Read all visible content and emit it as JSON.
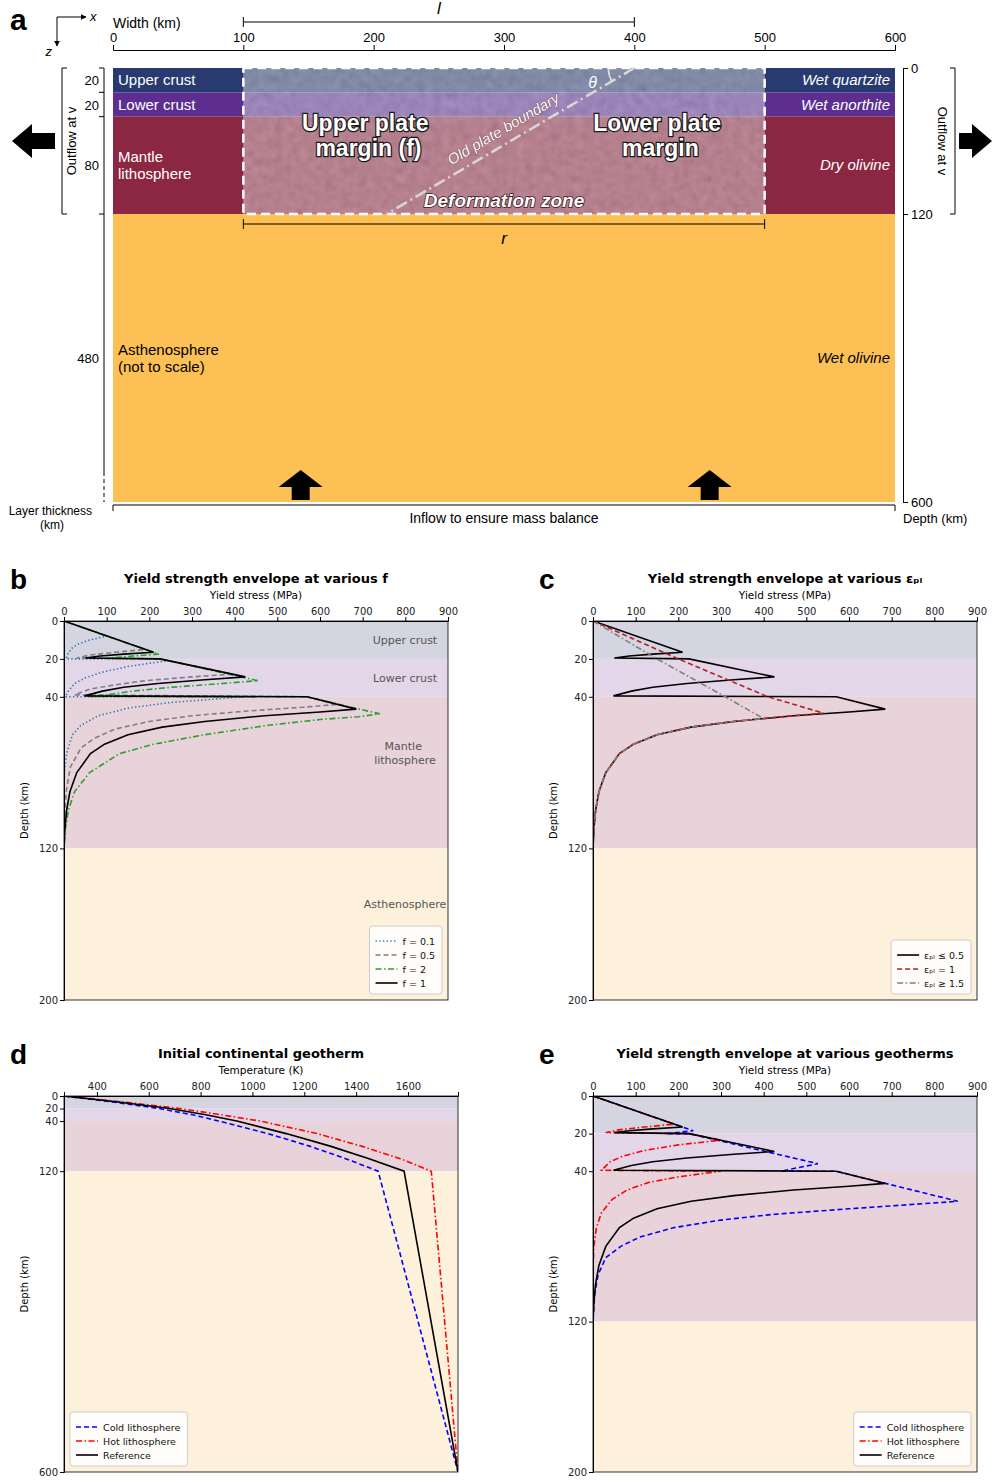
{
  "diagram": {
    "panel": "a",
    "axis_symbols": [
      "x",
      "z"
    ],
    "width_label": "Width (km)",
    "width_lim": [
      0,
      600
    ],
    "width_ticks": [
      0,
      100,
      200,
      300,
      400,
      500,
      600
    ],
    "depth_label": "Depth (km)",
    "depth_ticks": [
      0,
      120,
      600
    ],
    "thickness_label": "Layer thickness (km)",
    "layers": [
      {
        "name": "Upper crust",
        "rheology": "Wet quartzite",
        "thickness": 20,
        "color": "#283a6f"
      },
      {
        "name": "Lower crust",
        "rheology": "Wet anorthite",
        "thickness": 20,
        "color": "#5b2e90"
      },
      {
        "name": "Mantle lithosphere",
        "rheology": "Dry olivine",
        "thickness": 80,
        "color": "#8c2742"
      },
      {
        "name": "Asthenosphere (not to scale)",
        "rheology": "Wet olivine",
        "thickness": 480,
        "color": "#fcc054"
      }
    ],
    "outflow_label": "Outflow at v",
    "inflow_label": "Inflow to ensure mass balance",
    "deformation_zone": {
      "label": "Deformation zone",
      "x_range": [
        100,
        500
      ],
      "depth": 120
    },
    "upper_plate_label": "Upper plate margin (f)",
    "lower_plate_label": "Lower plate margin",
    "old_plate_boundary": {
      "label": "Old plate boundary",
      "x_top": 400,
      "x_bottom": 210,
      "angle_label": "θ"
    },
    "dimensions": [
      {
        "label": "l",
        "x_range": [
          100,
          400
        ]
      },
      {
        "label": "r",
        "x_range": [
          100,
          500
        ]
      }
    ]
  },
  "chart_data": [
    {
      "panel": "b",
      "type": "line",
      "title": "Yield strength envelope at various f",
      "x_label": "Yield stress (MPa)",
      "y_label": "Depth (km)",
      "xlim": [
        0,
        900
      ],
      "xticks": [
        0,
        100,
        200,
        300,
        400,
        500,
        600,
        700,
        800,
        900
      ],
      "ylim": [
        0,
        200
      ],
      "yticks": [
        0,
        20,
        40,
        120,
        200
      ],
      "legend": "lower right",
      "layers": [
        {
          "name": "Upper crust",
          "range": [
            0,
            20
          ],
          "color": "#d4d5e0"
        },
        {
          "name": "Lower crust",
          "range": [
            20,
            40
          ],
          "color": "#e4d6e9"
        },
        {
          "name": "Mantle lithosphere",
          "range": [
            40,
            120
          ],
          "color": "#e8d3da"
        },
        {
          "name": "Asthenosphere",
          "range": [
            120,
            200
          ],
          "color": "#fdf1dc"
        }
      ],
      "series": [
        {
          "name": "f = 0.1",
          "color": "#1f77b4",
          "line_style": "dotted",
          "x": [
            0,
            100,
            60,
            35,
            20,
            10,
            5,
            225,
            240,
            150,
            90,
            50,
            25,
            10,
            3,
            420,
            250,
            150,
            80,
            40,
            20,
            6,
            1,
            0
          ],
          "values": [
            0,
            8,
            10,
            12,
            14,
            17,
            20,
            20,
            21,
            24,
            27,
            30,
            33,
            37,
            40,
            40,
            43,
            46,
            50,
            55,
            60,
            70,
            80,
            90
          ]
        },
        {
          "name": "f = 0.5",
          "color": "#7f7f7f",
          "line_style": "dashed",
          "x": [
            0,
            190,
            120,
            60,
            30,
            225,
            395,
            300,
            190,
            110,
            60,
            25,
            570,
            640,
            560,
            430,
            300,
            200,
            120,
            70,
            40,
            15,
            5,
            0
          ],
          "values": [
            0,
            15,
            16.5,
            18,
            19.5,
            20,
            28,
            29.5,
            31.5,
            34,
            36,
            39,
            40,
            44,
            45.5,
            47.5,
            50,
            53,
            57,
            62,
            67,
            77,
            90,
            110
          ]
        },
        {
          "name": "f = 2",
          "color": "#2ca02c",
          "line_style": "dashdot",
          "x": [
            0,
            222,
            160,
            100,
            225,
            455,
            370,
            250,
            160,
            100,
            60,
            570,
            740,
            690,
            600,
            480,
            330,
            210,
            130,
            60,
            25,
            10,
            3,
            0
          ],
          "values": [
            0,
            17.5,
            18.5,
            19.7,
            20,
            31.5,
            33,
            35,
            37,
            39,
            39.8,
            40,
            49,
            50.5,
            52,
            55,
            60,
            65,
            70,
            80,
            90,
            100,
            110,
            120
          ]
        },
        {
          "name": "f = 1",
          "color": "#000000",
          "line_style": "solid",
          "x": [
            0,
            210,
            140,
            85,
            50,
            225,
            425,
            330,
            220,
            140,
            90,
            48,
            570,
            685,
            600,
            470,
            330,
            230,
            150,
            95,
            62,
            30,
            14,
            6,
            2,
            0,
            0
          ],
          "values": [
            0,
            16.5,
            17.5,
            18.5,
            19.5,
            20,
            29.5,
            31,
            33,
            35,
            37,
            39.5,
            40,
            46.5,
            48,
            50,
            53,
            56,
            60,
            65,
            70,
            80,
            90,
            100,
            110,
            120,
            200
          ]
        }
      ]
    },
    {
      "panel": "c",
      "type": "line",
      "title": "Yield strength envelope at various εₚₗ",
      "x_label": "Yield stress (MPa)",
      "y_label": "Depth (km)",
      "xlim": [
        0,
        900
      ],
      "xticks": [
        0,
        100,
        200,
        300,
        400,
        500,
        600,
        700,
        800,
        900
      ],
      "ylim": [
        0,
        200
      ],
      "yticks": [
        0,
        20,
        40,
        120,
        200
      ],
      "legend": "lower right",
      "layers": [
        {
          "range": [
            0,
            20
          ],
          "color": "#d4d5e0"
        },
        {
          "range": [
            20,
            40
          ],
          "color": "#e4d6e9"
        },
        {
          "range": [
            40,
            120
          ],
          "color": "#e8d3da"
        },
        {
          "range": [
            120,
            200
          ],
          "color": "#fdf1dc"
        }
      ],
      "series": [
        {
          "name": "εₚₗ ≤ 0.5",
          "color": "#000000",
          "line_style": "solid",
          "x": [
            0,
            210,
            140,
            85,
            50,
            225,
            425,
            330,
            220,
            140,
            90,
            48,
            570,
            685,
            600,
            470,
            330,
            230,
            150,
            95,
            62,
            30,
            14,
            6,
            2,
            0,
            0
          ],
          "values": [
            0,
            16.5,
            17.5,
            18.5,
            19.5,
            20,
            29.5,
            31,
            33,
            35,
            37,
            39.5,
            40,
            46.5,
            48,
            50,
            53,
            56,
            60,
            65,
            70,
            80,
            90,
            100,
            110,
            120,
            200
          ]
        },
        {
          "name": "εₚₗ = 1",
          "color": "#b22222",
          "line_style": "dashed",
          "x": [
            0,
            200,
            410,
            540,
            470,
            330,
            230,
            150,
            95,
            62,
            30,
            14,
            6,
            2,
            0,
            0
          ],
          "values": [
            0,
            20,
            40,
            48.6,
            50,
            53,
            56,
            60,
            65,
            70,
            80,
            90,
            100,
            110,
            120,
            200
          ]
        },
        {
          "name": "εₚₗ ≥ 1.5",
          "color": "#7f7f7f",
          "line_style": "dashdot",
          "x": [
            0,
            150,
            310,
            400,
            330,
            230,
            150,
            95,
            62,
            30,
            14,
            6,
            2,
            0,
            0
          ],
          "values": [
            0,
            20,
            40,
            51.5,
            53,
            56,
            60,
            65,
            70,
            80,
            90,
            100,
            110,
            120,
            200
          ]
        }
      ]
    },
    {
      "panel": "d",
      "type": "line",
      "title": "Initial continental geotherm",
      "x_label": "Temperature (K)",
      "y_label": "Depth (km)",
      "xlim": [
        273,
        1793
      ],
      "xticks": [
        400,
        600,
        800,
        1000,
        1200,
        1400,
        1600
      ],
      "ylim": [
        0,
        600
      ],
      "yticks": [
        0,
        20,
        40,
        120,
        600
      ],
      "legend": "lower left",
      "layers": [
        {
          "range": [
            0,
            20
          ],
          "color": "#d4d5e0"
        },
        {
          "range": [
            20,
            40
          ],
          "color": "#e4d6e9"
        },
        {
          "range": [
            40,
            120
          ],
          "color": "#e8d3da"
        },
        {
          "range": [
            120,
            600
          ],
          "color": "#fdf1dc"
        }
      ],
      "series": [
        {
          "name": "Cold lithosphere",
          "color": "#0000ff",
          "line_style": "dashed",
          "x": [
            273,
            470,
            640,
            770,
            870,
            1060,
            1220,
            1360,
            1485,
            1793
          ],
          "values": [
            0,
            10,
            20,
            30,
            40,
            60,
            80,
            100,
            120,
            600
          ]
        },
        {
          "name": "Hot lithosphere",
          "color": "#ff0000",
          "line_style": "dashdot",
          "x": [
            273,
            510,
            720,
            880,
            1030,
            1250,
            1420,
            1570,
            1690,
            1793
          ],
          "values": [
            0,
            10,
            20,
            30,
            40,
            60,
            80,
            100,
            120,
            600
          ]
        },
        {
          "name": "Reference",
          "color": "#000000",
          "line_style": "solid",
          "x": [
            273,
            490,
            680,
            820,
            940,
            1130,
            1300,
            1450,
            1585,
            1793
          ],
          "values": [
            0,
            10,
            20,
            30,
            40,
            60,
            80,
            100,
            120,
            600
          ]
        }
      ]
    },
    {
      "panel": "e",
      "type": "line",
      "title": "Yield strength envelope at various geotherms",
      "x_label": "Yield stress (MPa)",
      "y_label": "Depth (km)",
      "xlim": [
        0,
        900
      ],
      "xticks": [
        0,
        100,
        200,
        300,
        400,
        500,
        600,
        700,
        800,
        900
      ],
      "ylim": [
        0,
        200
      ],
      "yticks": [
        0,
        20,
        40,
        120,
        200
      ],
      "legend": "lower right",
      "layers": [
        {
          "range": [
            0,
            20
          ],
          "color": "#d4d5e0"
        },
        {
          "range": [
            20,
            40
          ],
          "color": "#e4d6e9"
        },
        {
          "range": [
            40,
            120
          ],
          "color": "#e8d3da"
        },
        {
          "range": [
            120,
            200
          ],
          "color": "#fdf1dc"
        }
      ],
      "series": [
        {
          "name": "Cold lithosphere",
          "color": "#0000ff",
          "line_style": "dashed",
          "x": [
            0,
            235,
            170,
            225,
            527,
            440,
            570,
            855,
            600,
            420,
            300,
            190,
            110,
            65,
            30,
            12,
            4,
            0,
            0
          ],
          "values": [
            0,
            18.5,
            20,
            20,
            36,
            40,
            40,
            56,
            60,
            63,
            66,
            70,
            75,
            80,
            86,
            95,
            105,
            120,
            200
          ]
        },
        {
          "name": "Hot lithosphere",
          "color": "#ff0000",
          "line_style": "dashdot",
          "x": [
            0,
            190,
            120,
            60,
            30,
            225,
            300,
            200,
            120,
            70,
            40,
            20,
            300,
            200,
            130,
            80,
            45,
            20,
            8,
            2,
            0
          ],
          "values": [
            0,
            15,
            16.5,
            18,
            19.5,
            20,
            23.5,
            26,
            29,
            32,
            35,
            39.5,
            40,
            43,
            46,
            50,
            55,
            62,
            70,
            80,
            95
          ]
        },
        {
          "name": "Reference",
          "color": "#000000",
          "line_style": "solid",
          "x": [
            0,
            210,
            140,
            85,
            50,
            225,
            425,
            330,
            220,
            140,
            90,
            48,
            570,
            685,
            600,
            470,
            330,
            230,
            150,
            95,
            62,
            30,
            14,
            6,
            2,
            0,
            0
          ],
          "values": [
            0,
            16.5,
            17.5,
            18.5,
            19.5,
            20,
            29.5,
            31,
            33,
            35,
            37,
            39.5,
            40,
            46.5,
            48,
            50,
            53,
            56,
            60,
            65,
            70,
            80,
            90,
            100,
            110,
            120,
            200
          ]
        }
      ]
    }
  ]
}
